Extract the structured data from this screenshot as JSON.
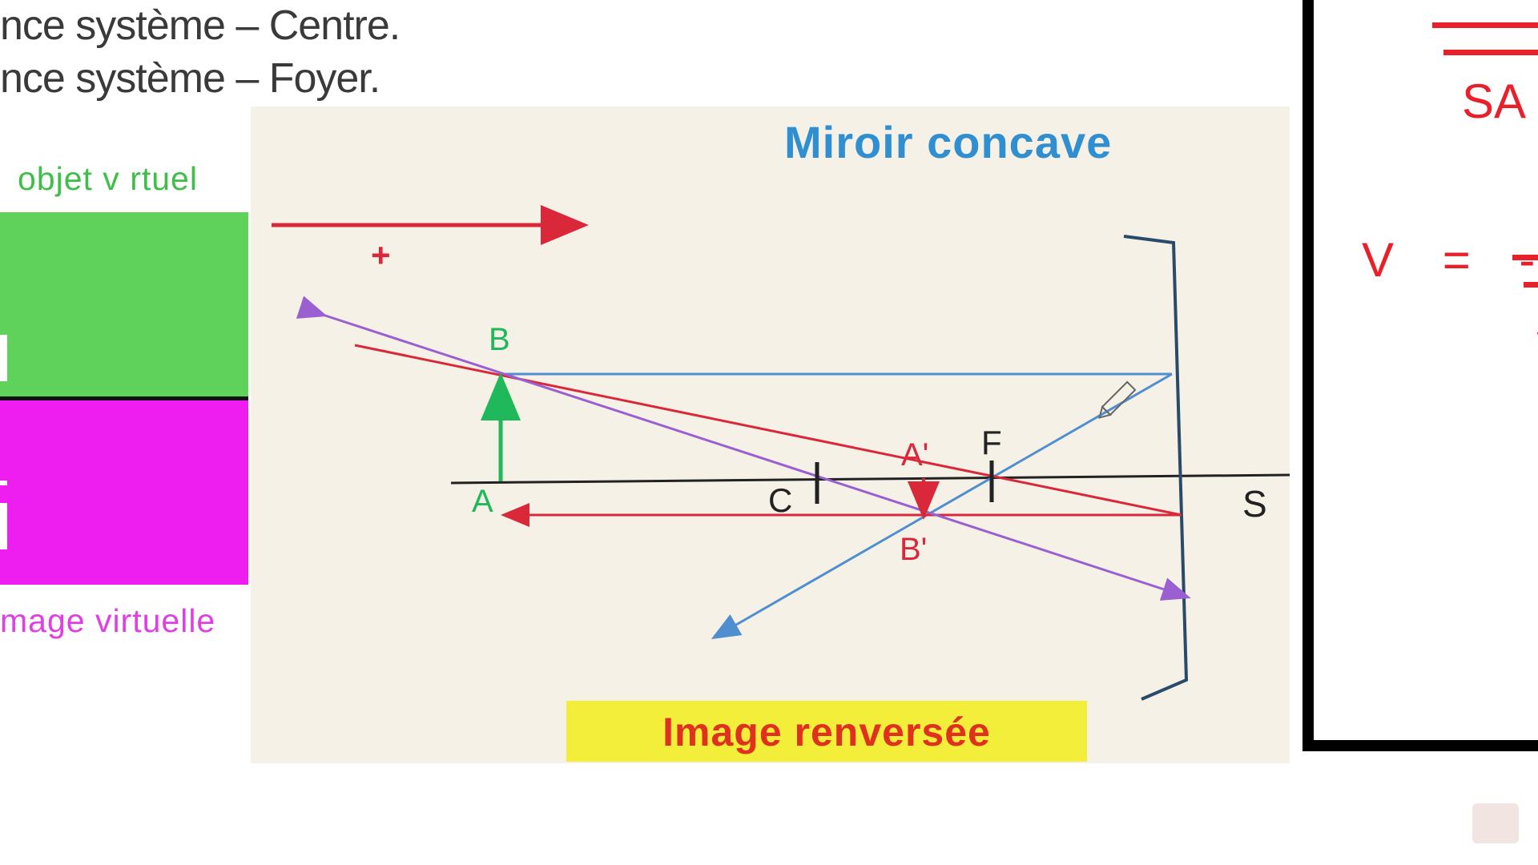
{
  "header": {
    "line1": "nce système – Centre.",
    "line2": "nce système – Foyer."
  },
  "legend": {
    "object_label": "objet  v rtuel",
    "image_label": "mage  virtuelle",
    "object_color": "#5ed25a",
    "image_color": "#ee1ef0"
  },
  "diagram": {
    "title": "Miroir concave",
    "caption": "Image renversée",
    "direction_sign": "+",
    "points": {
      "A": "A",
      "B": "B",
      "A_prime": "A'",
      "B_prime": "B'",
      "C": "C",
      "F": "F",
      "S": "S"
    },
    "colors": {
      "title": "#2f8fd0",
      "caption_text": "#e0301f",
      "caption_bg": "#f3ee3a",
      "object": "#1fb85a",
      "image": "#e0303a",
      "ray_blue": "#4f8fd0",
      "ray_red": "#d8283a",
      "ray_purple": "#9a5fd0",
      "axis": "#222222",
      "mirror": "#2a4a6a"
    }
  },
  "right_panel": {
    "sa_label": "SA",
    "formula": "V = -",
    "fragment": "S",
    "color": "#e8202a"
  }
}
